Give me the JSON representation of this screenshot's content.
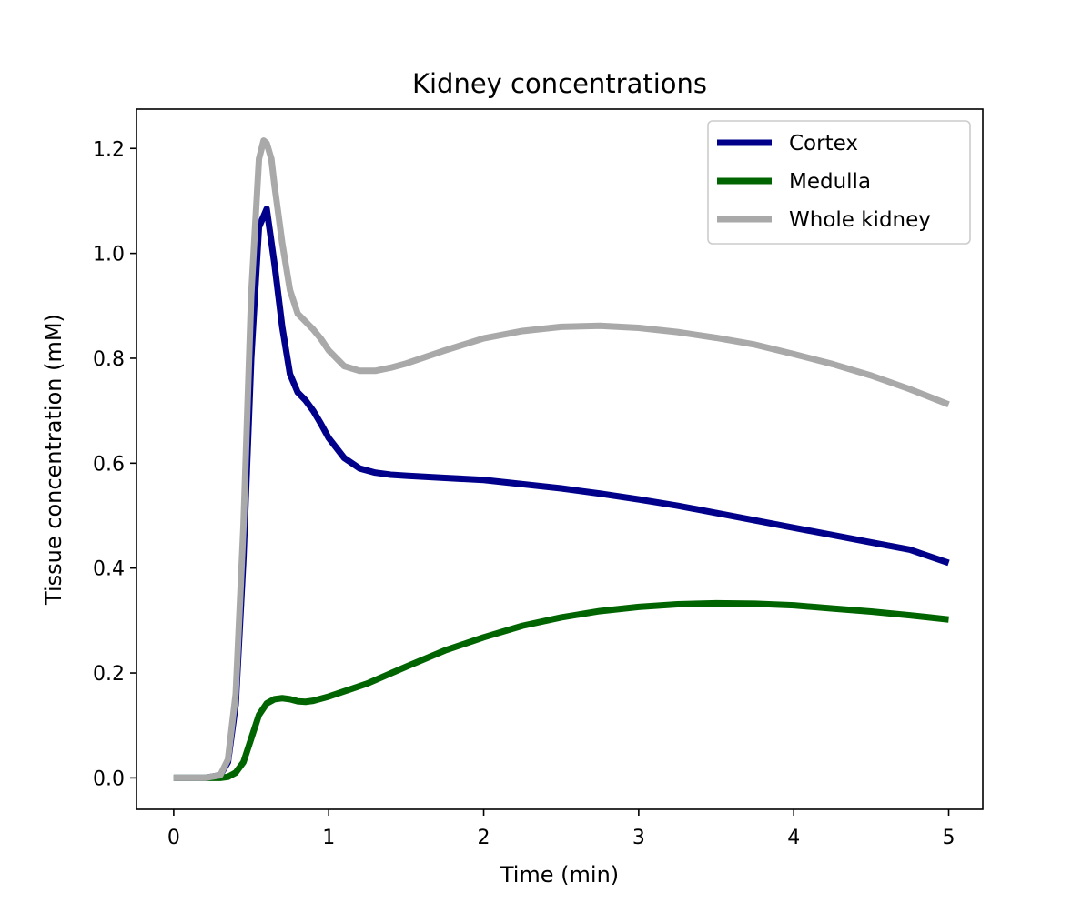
{
  "chart_data": {
    "type": "line",
    "title": "Kidney concentrations",
    "xlabel": "Time (min)",
    "ylabel": "Tissue concentration (mM)",
    "xlim": [
      -0.24,
      5.22
    ],
    "ylim": [
      -0.06,
      1.275
    ],
    "xticks": [
      0,
      1,
      2,
      3,
      4,
      5
    ],
    "xtick_labels": [
      "0",
      "1",
      "2",
      "3",
      "4",
      "5"
    ],
    "yticks": [
      0.0,
      0.2,
      0.4,
      0.6,
      0.8,
      1.0,
      1.2
    ],
    "ytick_labels": [
      "0.0",
      "0.2",
      "0.4",
      "0.6",
      "0.8",
      "1.0",
      "1.2"
    ],
    "grid": false,
    "legend_position": "upper right",
    "series": [
      {
        "name": "Cortex",
        "color": "#00008b",
        "x": [
          0,
          0.1,
          0.2,
          0.3,
          0.35,
          0.4,
          0.45,
          0.5,
          0.55,
          0.6,
          0.65,
          0.7,
          0.75,
          0.8,
          0.85,
          0.9,
          0.95,
          1.0,
          1.1,
          1.2,
          1.3,
          1.4,
          1.5,
          1.75,
          2.0,
          2.25,
          2.5,
          2.75,
          3.0,
          3.25,
          3.5,
          3.75,
          4.0,
          4.25,
          4.5,
          4.75,
          5.0
        ],
        "y": [
          0.0,
          0.0,
          0.0,
          0.005,
          0.03,
          0.14,
          0.42,
          0.8,
          1.05,
          1.085,
          0.98,
          0.86,
          0.77,
          0.735,
          0.72,
          0.7,
          0.675,
          0.648,
          0.61,
          0.59,
          0.582,
          0.578,
          0.576,
          0.572,
          0.568,
          0.56,
          0.552,
          0.542,
          0.531,
          0.519,
          0.505,
          0.491,
          0.477,
          0.463,
          0.449,
          0.435,
          0.41
        ]
      },
      {
        "name": "Medulla",
        "color": "#006400",
        "x": [
          0,
          0.1,
          0.2,
          0.3,
          0.35,
          0.4,
          0.45,
          0.5,
          0.55,
          0.6,
          0.65,
          0.7,
          0.75,
          0.8,
          0.85,
          0.9,
          1.0,
          1.25,
          1.5,
          1.75,
          2.0,
          2.25,
          2.5,
          2.75,
          3.0,
          3.25,
          3.5,
          3.75,
          4.0,
          4.25,
          4.5,
          4.75,
          5.0
        ],
        "y": [
          0.0,
          0.0,
          0.0,
          0.0,
          0.002,
          0.01,
          0.03,
          0.075,
          0.12,
          0.142,
          0.15,
          0.152,
          0.15,
          0.146,
          0.145,
          0.147,
          0.155,
          0.18,
          0.212,
          0.243,
          0.268,
          0.29,
          0.306,
          0.318,
          0.326,
          0.331,
          0.333,
          0.332,
          0.329,
          0.323,
          0.317,
          0.31,
          0.302
        ]
      },
      {
        "name": "Whole kidney",
        "color": "#a9a9a9",
        "x": [
          0,
          0.1,
          0.2,
          0.3,
          0.35,
          0.4,
          0.45,
          0.5,
          0.55,
          0.58,
          0.6,
          0.63,
          0.65,
          0.7,
          0.75,
          0.8,
          0.85,
          0.9,
          0.95,
          1.0,
          1.1,
          1.2,
          1.3,
          1.4,
          1.5,
          1.75,
          2.0,
          2.25,
          2.5,
          2.75,
          3.0,
          3.25,
          3.5,
          3.75,
          4.0,
          4.25,
          4.5,
          4.75,
          5.0
        ],
        "y": [
          0.0,
          0.0,
          0.0,
          0.005,
          0.035,
          0.16,
          0.48,
          0.92,
          1.18,
          1.215,
          1.21,
          1.18,
          1.13,
          1.02,
          0.93,
          0.885,
          0.87,
          0.855,
          0.837,
          0.815,
          0.785,
          0.776,
          0.776,
          0.782,
          0.79,
          0.815,
          0.838,
          0.852,
          0.86,
          0.862,
          0.858,
          0.85,
          0.839,
          0.826,
          0.808,
          0.789,
          0.767,
          0.741,
          0.712
        ]
      }
    ]
  }
}
